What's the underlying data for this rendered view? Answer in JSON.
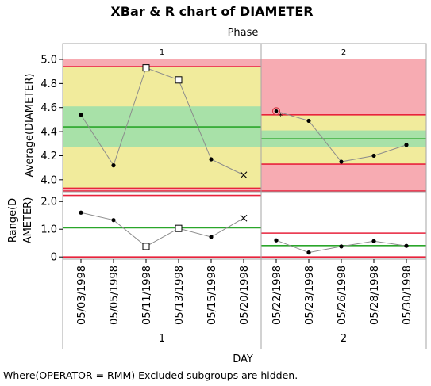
{
  "chart_data": {
    "type": "line",
    "title": "XBar & R chart of DIAMETER",
    "phase_label": "Phase",
    "phases": [
      {
        "label": "1",
        "dates": [
          "05/03/1998",
          "05/05/1998",
          "05/11/1998",
          "05/13/1998",
          "05/15/1998",
          "05/20/1998"
        ]
      },
      {
        "label": "2",
        "dates": [
          "05/22/1998",
          "05/23/1998",
          "05/26/1998",
          "05/28/1998",
          "05/30/1998"
        ]
      }
    ],
    "xlabel": "DAY",
    "footnote": "Where(OPERATOR = RMM) Excluded subgroups are hidden.",
    "xbar": {
      "ylabel": "Average(DIAMETER)",
      "ylim": [
        3.9,
        5.0
      ],
      "yticks": [
        "4.0",
        "4.2",
        "4.4",
        "4.6",
        "4.8",
        "5.0"
      ],
      "limits": [
        {
          "ucl": 4.94,
          "center": 4.44,
          "lcl": 3.93,
          "zone_hi": 4.61,
          "zone_lo": 4.27
        },
        {
          "ucl": 4.54,
          "center": 4.34,
          "lcl": 4.13,
          "zone_hi": 4.41,
          "zone_lo": 4.27
        }
      ],
      "values": [
        [
          4.54,
          4.12,
          4.93,
          4.83,
          4.17,
          4.04
        ],
        [
          4.57,
          4.49,
          4.15,
          4.2,
          4.29
        ]
      ],
      "markers": [
        [
          "dot",
          "dot",
          "square",
          "square",
          "dot",
          "x"
        ],
        [
          "circle",
          "dot",
          "dot",
          "dot",
          "dot"
        ]
      ]
    },
    "range": {
      "ylabel": "Range(DIAMETER)",
      "ylim": [
        -0.08,
        2.35
      ],
      "yticks": [
        "0",
        "1.0",
        "2.0"
      ],
      "limits": [
        {
          "ucl": 2.22,
          "center": 1.05,
          "lcl": 0
        },
        {
          "ucl": 0.86,
          "center": 0.41,
          "lcl": 0
        }
      ],
      "values": [
        [
          1.6,
          1.33,
          0.38,
          1.03,
          0.72,
          1.4
        ],
        [
          0.6,
          0.16,
          0.38,
          0.57,
          0.4
        ]
      ],
      "markers": [
        [
          "dot",
          "dot",
          "square",
          "square",
          "dot",
          "x"
        ],
        [
          "dot",
          "dot",
          "dot",
          "dot",
          "dot"
        ]
      ]
    },
    "colors": {
      "zone_outer": "#f1eb9c",
      "zone_inner": "#a8e1a8",
      "out_of_control": "#f7abb2",
      "limit_line": "#e8233c",
      "center_line": "#2aa62a",
      "series_line": "#8c8c8c",
      "point": "#000000",
      "frame": "#a6a6a6"
    }
  }
}
